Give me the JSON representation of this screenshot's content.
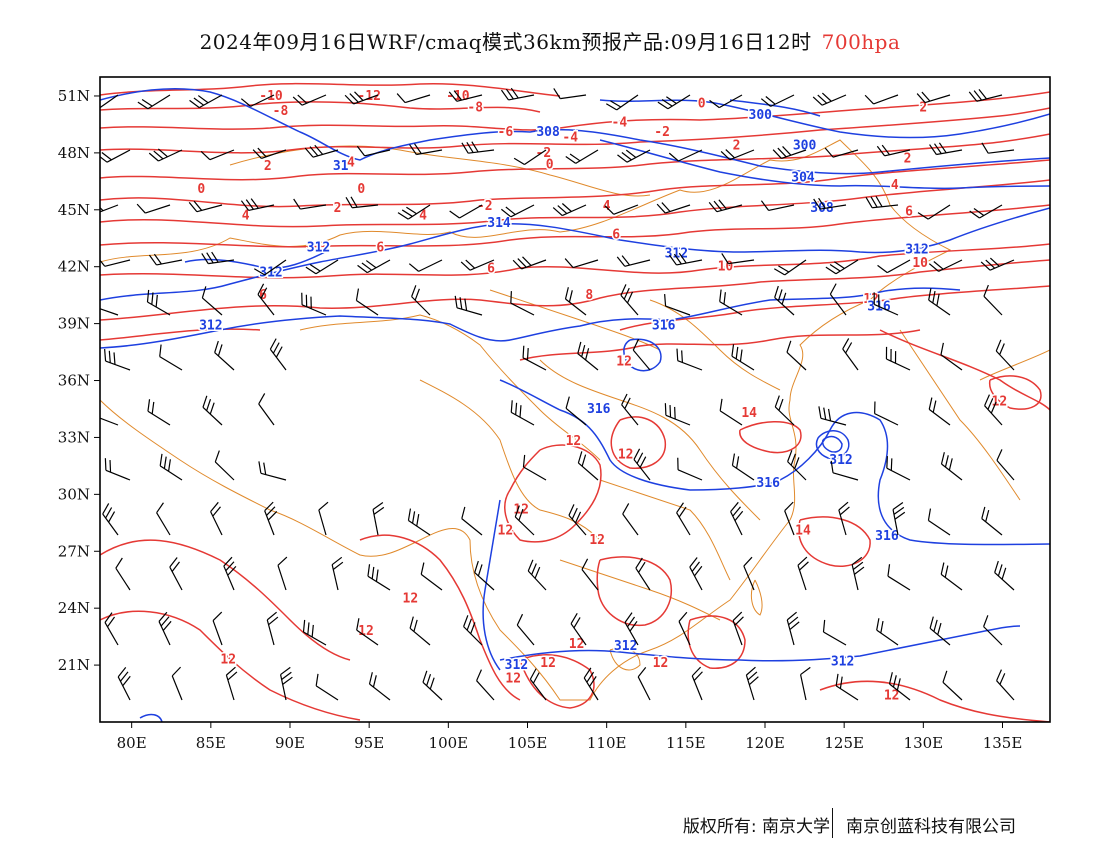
{
  "title": {
    "text": "2024年09月16日WRF/cmaq模式36km预报产品:09月16日12时",
    "level": "700hpa"
  },
  "map": {
    "lon_ticks": [
      "80E",
      "85E",
      "90E",
      "95E",
      "100E",
      "105E",
      "110E",
      "115E",
      "120E",
      "125E",
      "130E",
      "135E"
    ],
    "lat_ticks": [
      "51N",
      "48N",
      "45N",
      "42N",
      "39N",
      "36N",
      "33N",
      "30N",
      "27N",
      "24N",
      "21N"
    ],
    "colors": {
      "temperature": "#e53935",
      "height": "#1e40e0",
      "boundary": "#e08a2c",
      "wind": "#000000",
      "frame": "#000000"
    }
  },
  "chart_data": {
    "type": "map",
    "extent": {
      "lon": [
        78,
        138
      ],
      "lat": [
        18,
        52
      ]
    },
    "height_contours_label": [
      "300",
      "304",
      "308",
      "312",
      "316"
    ],
    "temperature_contours_label": [
      "-12",
      "-10",
      "-6",
      "-4",
      "-2",
      "0",
      "2",
      "4",
      "6",
      "8",
      "10",
      "12",
      "14"
    ],
    "contour_labels": [
      {
        "lon": 88.8,
        "lat": 51.0,
        "text": "-10",
        "kind": "temp"
      },
      {
        "lon": 95.0,
        "lat": 51.0,
        "text": "-12",
        "kind": "temp"
      },
      {
        "lon": 100.6,
        "lat": 51.0,
        "text": "-10",
        "kind": "temp"
      },
      {
        "lon": 89.4,
        "lat": 50.2,
        "text": "-8",
        "kind": "temp"
      },
      {
        "lon": 101.7,
        "lat": 50.4,
        "text": "-8",
        "kind": "temp"
      },
      {
        "lon": 103.6,
        "lat": 49.1,
        "text": "-6",
        "kind": "temp"
      },
      {
        "lon": 107.7,
        "lat": 48.8,
        "text": "-4",
        "kind": "temp"
      },
      {
        "lon": 113.5,
        "lat": 49.1,
        "text": "-2",
        "kind": "temp"
      },
      {
        "lon": 110.8,
        "lat": 49.6,
        "text": "-4",
        "kind": "temp"
      },
      {
        "lon": 106.0,
        "lat": 48.0,
        "text": "-2",
        "kind": "temp"
      },
      {
        "lon": 106.4,
        "lat": 47.4,
        "text": "0",
        "kind": "temp"
      },
      {
        "lon": 88.6,
        "lat": 47.3,
        "text": "2",
        "kind": "temp"
      },
      {
        "lon": 84.4,
        "lat": 46.1,
        "text": "0",
        "kind": "temp"
      },
      {
        "lon": 93.6,
        "lat": 47.5,
        "text": "-4",
        "kind": "temp"
      },
      {
        "lon": 94.5,
        "lat": 46.1,
        "text": "0",
        "kind": "temp"
      },
      {
        "lon": 93.0,
        "lat": 45.1,
        "text": "2",
        "kind": "temp"
      },
      {
        "lon": 102.3,
        "lat": 45.2,
        "text": "-2",
        "kind": "temp"
      },
      {
        "lon": 87.2,
        "lat": 44.7,
        "text": "4",
        "kind": "temp"
      },
      {
        "lon": 98.4,
        "lat": 44.7,
        "text": "4",
        "kind": "temp"
      },
      {
        "lon": 95.7,
        "lat": 43.0,
        "text": "6",
        "kind": "temp"
      },
      {
        "lon": 110.6,
        "lat": 43.7,
        "text": "6",
        "kind": "temp"
      },
      {
        "lon": 118.2,
        "lat": 48.4,
        "text": "2",
        "kind": "temp"
      },
      {
        "lon": 116.0,
        "lat": 50.6,
        "text": "0",
        "kind": "temp"
      },
      {
        "lon": 129.0,
        "lat": 47.7,
        "text": "2",
        "kind": "temp"
      },
      {
        "lon": 128.2,
        "lat": 46.3,
        "text": "4",
        "kind": "temp"
      },
      {
        "lon": 129.1,
        "lat": 44.9,
        "text": "6",
        "kind": "temp"
      },
      {
        "lon": 130.0,
        "lat": 50.4,
        "text": "2",
        "kind": "temp"
      },
      {
        "lon": 110.0,
        "lat": 45.2,
        "text": "4",
        "kind": "temp"
      },
      {
        "lon": 102.7,
        "lat": 41.9,
        "text": "6",
        "kind": "temp"
      },
      {
        "lon": 88.3,
        "lat": 40.5,
        "text": "6",
        "kind": "temp"
      },
      {
        "lon": 108.9,
        "lat": 40.5,
        "text": "8",
        "kind": "temp"
      },
      {
        "lon": 117.5,
        "lat": 42.0,
        "text": "10",
        "kind": "temp"
      },
      {
        "lon": 129.8,
        "lat": 42.2,
        "text": "10",
        "kind": "temp"
      },
      {
        "lon": 126.7,
        "lat": 40.3,
        "text": "12",
        "kind": "temp"
      },
      {
        "lon": 111.1,
        "lat": 37.0,
        "text": "12",
        "kind": "temp"
      },
      {
        "lon": 119.0,
        "lat": 34.3,
        "text": "14",
        "kind": "temp"
      },
      {
        "lon": 107.9,
        "lat": 32.8,
        "text": "12",
        "kind": "temp"
      },
      {
        "lon": 111.2,
        "lat": 32.1,
        "text": "12",
        "kind": "temp"
      },
      {
        "lon": 104.6,
        "lat": 29.2,
        "text": "12",
        "kind": "temp"
      },
      {
        "lon": 103.6,
        "lat": 28.1,
        "text": "12",
        "kind": "temp"
      },
      {
        "lon": 109.4,
        "lat": 27.6,
        "text": "12",
        "kind": "temp"
      },
      {
        "lon": 122.4,
        "lat": 28.1,
        "text": "14",
        "kind": "temp"
      },
      {
        "lon": 97.6,
        "lat": 24.5,
        "text": "12",
        "kind": "temp"
      },
      {
        "lon": 94.8,
        "lat": 22.8,
        "text": "12",
        "kind": "temp"
      },
      {
        "lon": 86.1,
        "lat": 21.3,
        "text": "12",
        "kind": "temp"
      },
      {
        "lon": 108.1,
        "lat": 22.1,
        "text": "12",
        "kind": "temp"
      },
      {
        "lon": 106.3,
        "lat": 21.1,
        "text": "12",
        "kind": "temp"
      },
      {
        "lon": 113.4,
        "lat": 21.1,
        "text": "12",
        "kind": "temp"
      },
      {
        "lon": 104.1,
        "lat": 20.3,
        "text": "12",
        "kind": "temp"
      },
      {
        "lon": 128.0,
        "lat": 19.4,
        "text": "12",
        "kind": "temp"
      },
      {
        "lon": 134.8,
        "lat": 34.9,
        "text": "12",
        "kind": "temp"
      },
      {
        "lon": 119.7,
        "lat": 50.0,
        "text": "300",
        "kind": "height"
      },
      {
        "lon": 106.3,
        "lat": 49.1,
        "text": "308",
        "kind": "height"
      },
      {
        "lon": 122.5,
        "lat": 48.4,
        "text": "300",
        "kind": "height"
      },
      {
        "lon": 93.2,
        "lat": 47.3,
        "text": "31",
        "kind": "height"
      },
      {
        "lon": 122.4,
        "lat": 46.7,
        "text": "304",
        "kind": "height"
      },
      {
        "lon": 123.6,
        "lat": 45.1,
        "text": "308",
        "kind": "height"
      },
      {
        "lon": 103.2,
        "lat": 44.3,
        "text": "314",
        "kind": "height"
      },
      {
        "lon": 91.8,
        "lat": 43.0,
        "text": "312",
        "kind": "height"
      },
      {
        "lon": 88.8,
        "lat": 41.7,
        "text": "312",
        "kind": "height"
      },
      {
        "lon": 114.4,
        "lat": 42.7,
        "text": "312",
        "kind": "height"
      },
      {
        "lon": 129.6,
        "lat": 42.9,
        "text": "312",
        "kind": "height"
      },
      {
        "lon": 85.0,
        "lat": 38.9,
        "text": "312",
        "kind": "height"
      },
      {
        "lon": 113.6,
        "lat": 38.9,
        "text": "316",
        "kind": "height"
      },
      {
        "lon": 127.2,
        "lat": 39.9,
        "text": "316",
        "kind": "height"
      },
      {
        "lon": 109.5,
        "lat": 34.5,
        "text": "316",
        "kind": "height"
      },
      {
        "lon": 124.8,
        "lat": 31.8,
        "text": "312",
        "kind": "height"
      },
      {
        "lon": 120.2,
        "lat": 30.6,
        "text": "316",
        "kind": "height"
      },
      {
        "lon": 127.7,
        "lat": 27.8,
        "text": "316",
        "kind": "height"
      },
      {
        "lon": 111.2,
        "lat": 22.0,
        "text": "312",
        "kind": "height"
      },
      {
        "lon": 104.3,
        "lat": 21.0,
        "text": "312",
        "kind": "height"
      },
      {
        "lon": 124.9,
        "lat": 21.2,
        "text": "312",
        "kind": "height"
      }
    ]
  },
  "footer": {
    "copyright": "版权所有: 南京大学",
    "company": "南京创蓝科技有限公司"
  }
}
